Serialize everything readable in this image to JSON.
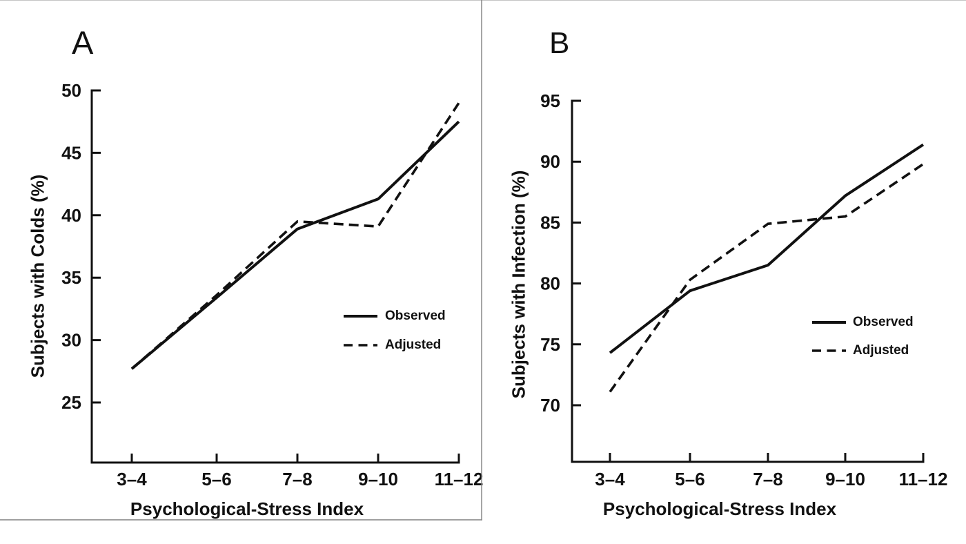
{
  "figure": {
    "panels": [
      {
        "panel_label": "A",
        "ylabel": "Subjects with Colds (%)",
        "xlabel": "Psychological-Stress Index",
        "legend": {
          "observed": "Observed",
          "adjusted": "Adjusted"
        }
      },
      {
        "panel_label": "B",
        "ylabel": "Subjects with Infection (%)",
        "xlabel": "Psychological-Stress Index",
        "legend": {
          "observed": "Observed",
          "adjusted": "Adjusted"
        }
      }
    ]
  },
  "chart_data": [
    {
      "type": "line",
      "title": "A",
      "xlabel": "Psychological-Stress Index",
      "ylabel": "Subjects with Colds (%)",
      "categories": [
        "3–4",
        "5–6",
        "7–8",
        "9–10",
        "11–12"
      ],
      "yticks": [
        25,
        30,
        35,
        40,
        45,
        50
      ],
      "ylim": [
        22,
        50
      ],
      "grid": false,
      "legend_position": "right-middle",
      "series": [
        {
          "name": "Observed",
          "style": "solid",
          "values": [
            27.7,
            33.4,
            38.9,
            41.3,
            47.5
          ]
        },
        {
          "name": "Adjusted",
          "style": "dashed",
          "values": [
            27.7,
            33.6,
            39.5,
            39.1,
            49.0
          ]
        }
      ]
    },
    {
      "type": "line",
      "title": "B",
      "xlabel": "Psychological-Stress Index",
      "ylabel": "Subjects with Infection (%)",
      "categories": [
        "3–4",
        "5–6",
        "7–8",
        "9–10",
        "11–12"
      ],
      "yticks": [
        70,
        75,
        80,
        85,
        90,
        95
      ],
      "ylim": [
        66,
        95
      ],
      "grid": false,
      "legend_position": "right-middle",
      "series": [
        {
          "name": "Observed",
          "style": "solid",
          "values": [
            74.3,
            79.4,
            81.5,
            87.2,
            91.4
          ]
        },
        {
          "name": "Adjusted",
          "style": "dashed",
          "values": [
            71.1,
            80.3,
            84.9,
            85.5,
            89.8
          ]
        }
      ]
    }
  ],
  "colors": {
    "ink": "#111111",
    "frame_border": "#808080",
    "top_rule": "#c4c4c4",
    "background": "#ffffff"
  }
}
